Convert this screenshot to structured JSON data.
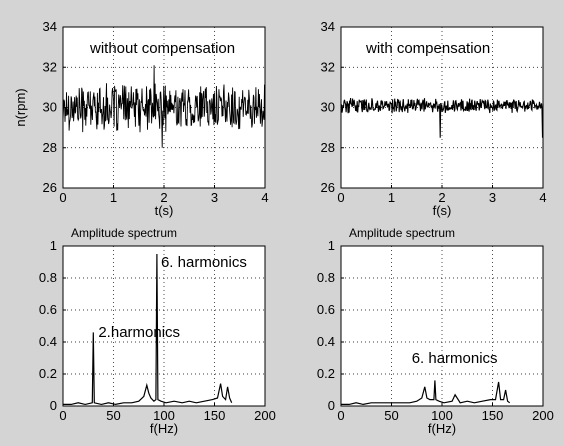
{
  "chart_data": [
    {
      "type": "line",
      "annotation": "without compensation",
      "xlabel": "t(s)",
      "ylabel": "n(rpm)",
      "xlim": [
        0,
        4
      ],
      "ylim": [
        26,
        34
      ],
      "xticks": [
        "0",
        "1",
        "2",
        "3",
        "4"
      ],
      "yticks": [
        "26",
        "28",
        "30",
        "32",
        "34"
      ],
      "grid": true,
      "series": [
        {
          "signal": "noise",
          "mean": 30.0,
          "amplitude": 1.3,
          "spike_max": 32.1,
          "spike_min": 28.0,
          "samples": 400
        }
      ]
    },
    {
      "type": "line",
      "annotation": "with compensation",
      "xlabel": "f(s)",
      "ylabel": "",
      "xlim": [
        0,
        4
      ],
      "ylim": [
        26,
        34
      ],
      "xticks": [
        "0",
        "1",
        "2",
        "3",
        "4"
      ],
      "yticks": [
        "26",
        "28",
        "30",
        "32",
        "34"
      ],
      "grid": true,
      "series": [
        {
          "signal": "noise",
          "mean": 30.1,
          "amplitude": 0.4,
          "spike_min": 28.5,
          "samples": 400
        }
      ]
    },
    {
      "type": "line",
      "title": "Amplitude spectrum",
      "xlabel": "f(Hz)",
      "ylabel": "",
      "xlim": [
        0,
        200
      ],
      "ylim": [
        0,
        1
      ],
      "xticks": [
        "0",
        "50",
        "100",
        "150",
        "200"
      ],
      "yticks": [
        "0",
        "0.2",
        "0.4",
        "0.6",
        "0.8",
        "1"
      ],
      "grid": true,
      "annotations": [
        {
          "text": "6. harmonics",
          "x": 97,
          "y": 0.87
        },
        {
          "text": "2.harmonics",
          "x": 35,
          "y": 0.43
        }
      ],
      "series": [
        {
          "x": [
            0,
            8,
            15,
            22,
            29,
            30,
            31,
            38,
            45,
            52,
            60,
            68,
            75,
            80,
            83,
            85,
            87,
            90,
            92,
            93,
            94,
            97,
            102,
            110,
            118,
            125,
            132,
            140,
            148,
            153,
            156,
            158,
            161,
            163,
            165,
            167
          ],
          "y": [
            0.01,
            0.01,
            0.02,
            0.01,
            0.02,
            0.46,
            0.02,
            0.01,
            0.02,
            0.01,
            0.02,
            0.02,
            0.03,
            0.06,
            0.13,
            0.08,
            0.05,
            0.03,
            0.04,
            0.95,
            0.04,
            0.03,
            0.02,
            0.03,
            0.02,
            0.03,
            0.02,
            0.03,
            0.04,
            0.05,
            0.14,
            0.06,
            0.04,
            0.12,
            0.05,
            0.02
          ]
        }
      ]
    },
    {
      "type": "line",
      "title": "Amplitude spectrum",
      "xlabel": "f(Hz)",
      "ylabel": "",
      "xlim": [
        0,
        200
      ],
      "ylim": [
        0,
        1
      ],
      "xticks": [
        "0",
        "50",
        "100",
        "150",
        "200"
      ],
      "yticks": [
        "0",
        "0.2",
        "0.4",
        "0.6",
        "0.8",
        "1"
      ],
      "grid": true,
      "annotations": [
        {
          "text": "6. harmonics",
          "x": 70,
          "y": 0.27
        }
      ],
      "series": [
        {
          "x": [
            0,
            8,
            15,
            22,
            30,
            38,
            45,
            52,
            60,
            68,
            75,
            80,
            83,
            85,
            88,
            92,
            93,
            94,
            97,
            102,
            110,
            113,
            118,
            125,
            132,
            140,
            148,
            153,
            156,
            158,
            161,
            163,
            165,
            167
          ],
          "y": [
            0.01,
            0.01,
            0.02,
            0.01,
            0.02,
            0.02,
            0.02,
            0.02,
            0.02,
            0.02,
            0.03,
            0.05,
            0.12,
            0.05,
            0.04,
            0.04,
            0.16,
            0.04,
            0.03,
            0.02,
            0.03,
            0.07,
            0.02,
            0.03,
            0.02,
            0.03,
            0.04,
            0.04,
            0.15,
            0.04,
            0.04,
            0.1,
            0.03,
            0.02
          ]
        }
      ]
    }
  ]
}
